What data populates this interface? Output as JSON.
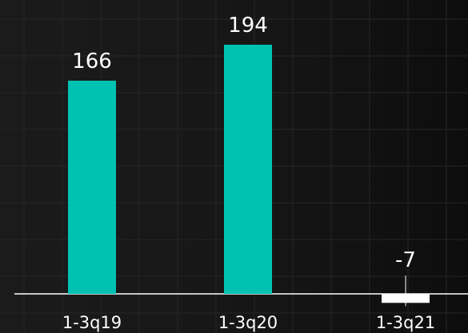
{
  "colors": {
    "bar": "#00C2B2",
    "negative_bar": "#FFFFFF",
    "baseline": "#FFFFFF",
    "label": "#FFFFFF",
    "background": "#141414"
  },
  "chart_data": {
    "type": "bar",
    "categories": [
      "1-3q19",
      "1-3q20",
      "1-3q21"
    ],
    "values": [
      166,
      194,
      -7
    ],
    "data_labels": [
      "166",
      "194",
      "-7"
    ],
    "title": "",
    "xlabel": "",
    "ylabel": "",
    "grid": false,
    "legend": "none"
  }
}
